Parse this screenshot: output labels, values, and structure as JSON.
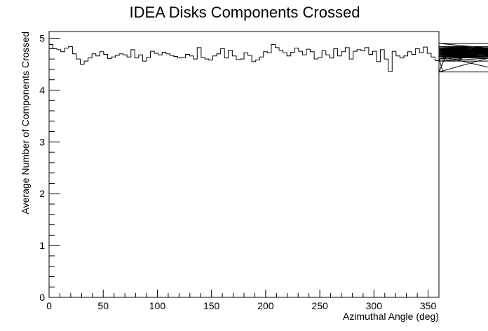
{
  "chart_data": {
    "type": "line",
    "title": "IDEA Disks Components Crossed",
    "xlabel": "Azimuthal Angle (deg)",
    "ylabel": "Average Number of Components Crossed",
    "xlim": [
      0,
      360
    ],
    "ylim": [
      0,
      5.13
    ],
    "x_ticks": [
      0,
      50,
      100,
      150,
      200,
      250,
      300,
      350
    ],
    "y_ticks": [
      0,
      1,
      2,
      3,
      4,
      5
    ],
    "grid": false,
    "legend": "none",
    "style": "histogram-step",
    "line_color": "#000000",
    "bin_edges_start": 0,
    "bin_width": 3.6,
    "series": [
      {
        "values": [
          4.88,
          4.8,
          4.78,
          4.74,
          4.81,
          4.84,
          4.7,
          4.6,
          4.5,
          4.56,
          4.62,
          4.7,
          4.66,
          4.74,
          4.69,
          4.61,
          4.64,
          4.67,
          4.7,
          4.68,
          4.64,
          4.78,
          4.62,
          4.68,
          4.56,
          4.63,
          4.75,
          4.71,
          4.68,
          4.73,
          4.7,
          4.67,
          4.65,
          4.62,
          4.63,
          4.69,
          4.66,
          4.6,
          4.82,
          4.63,
          4.6,
          4.58,
          4.66,
          4.7,
          4.8,
          4.62,
          4.77,
          4.66,
          4.59,
          4.6,
          4.72,
          4.67,
          4.55,
          4.58,
          4.64,
          4.74,
          4.72,
          4.88,
          4.82,
          4.77,
          4.72,
          4.66,
          4.73,
          4.81,
          4.75,
          4.68,
          4.79,
          4.74,
          4.6,
          4.63,
          4.76,
          4.68,
          4.62,
          4.8,
          4.66,
          4.74,
          4.82,
          4.6,
          4.75,
          4.78,
          4.76,
          4.82,
          4.69,
          4.75,
          4.55,
          4.78,
          4.6,
          4.36,
          4.75,
          4.66,
          4.62,
          4.66,
          4.74,
          4.69,
          4.8,
          4.72,
          4.83,
          4.71,
          4.64,
          4.57,
          4.62,
          4.35,
          4.7,
          4.75,
          4.8,
          4.72,
          4.6,
          4.66,
          4.68,
          4.82,
          4.77,
          4.74,
          4.65,
          4.7,
          4.77,
          4.8,
          4.75,
          4.66,
          4.35,
          4.75,
          4.8,
          4.62,
          4.66,
          4.78,
          4.7,
          4.9,
          4.72,
          4.77,
          4.62,
          4.68,
          4.75,
          4.76,
          4.82,
          4.74,
          4.7,
          4.56,
          4.72,
          4.66,
          4.77,
          4.74,
          4.8,
          4.84,
          4.76,
          4.78,
          4.62,
          4.8,
          4.72,
          4.56
        ]
      }
    ]
  }
}
